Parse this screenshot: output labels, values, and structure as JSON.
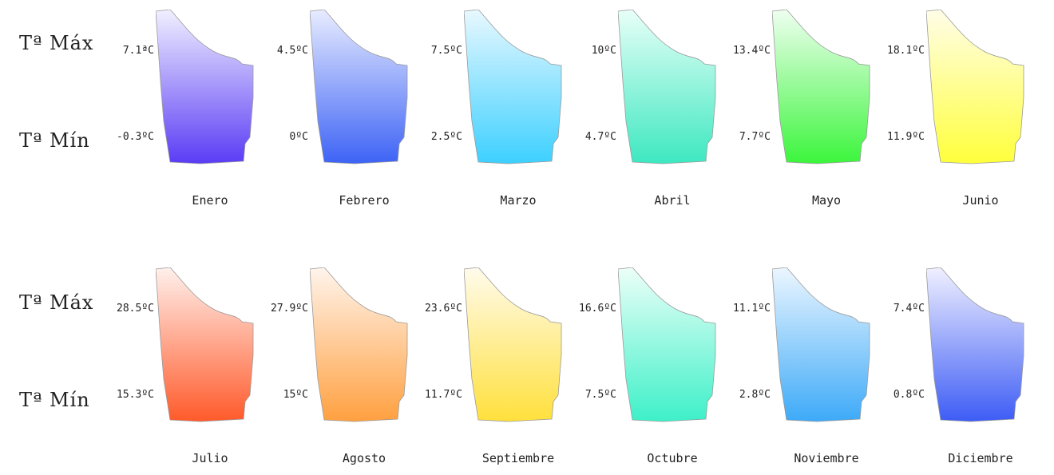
{
  "row_labels": {
    "max": "Tª Máx",
    "min": "Tª Mín"
  },
  "chart_data": {
    "type": "pictogram",
    "title": "",
    "series": [
      {
        "name": "Tª Máx"
      },
      {
        "name": "Tª Mín"
      }
    ],
    "months": [
      {
        "month": "Enero",
        "max": "7.1ªC",
        "min": "-0.3ºC",
        "max_value": 7.1,
        "min_value": -0.3,
        "color_top": "#f1f0ff",
        "color_bottom": "#5a3cf5"
      },
      {
        "month": "Febrero",
        "max": "4.5ºC",
        "min": "0ºC",
        "max_value": 4.5,
        "min_value": 0,
        "color_top": "#e8ecff",
        "color_bottom": "#3d63f5"
      },
      {
        "month": "Marzo",
        "max": "7.5ºC",
        "min": "2.5ºC",
        "max_value": 7.5,
        "min_value": 2.5,
        "color_top": "#e8f8ff",
        "color_bottom": "#3dd0ff"
      },
      {
        "month": "Abril",
        "max": "10ºC",
        "min": "4.7ºC",
        "max_value": 10,
        "min_value": 4.7,
        "color_top": "#e8fff8",
        "color_bottom": "#3de8c0"
      },
      {
        "month": "Mayo",
        "max": "13.4ºC",
        "min": "7.7ºC",
        "max_value": 13.4,
        "min_value": 7.7,
        "color_top": "#effff0",
        "color_bottom": "#3cf53c"
      },
      {
        "month": "Junio",
        "max": "18.1ºC",
        "min": "11.9ºC",
        "max_value": 18.1,
        "min_value": 11.9,
        "color_top": "#fffde8",
        "color_bottom": "#ffff3c"
      },
      {
        "month": "Julio",
        "max": "28.5ºC",
        "min": "15.3ºC",
        "max_value": 28.5,
        "min_value": 15.3,
        "color_top": "#fff0ec",
        "color_bottom": "#ff5a2a"
      },
      {
        "month": "Agosto",
        "max": "27.9ºC",
        "min": "15ºC",
        "max_value": 27.9,
        "min_value": 15,
        "color_top": "#fff4ec",
        "color_bottom": "#ffa040"
      },
      {
        "month": "Septiembre",
        "max": "23.6ºC",
        "min": "11.7ºC",
        "max_value": 23.6,
        "min_value": 11.7,
        "color_top": "#fffbec",
        "color_bottom": "#ffe03c"
      },
      {
        "month": "Octubre",
        "max": "16.6ºC",
        "min": "7.5ºC",
        "max_value": 16.6,
        "min_value": 7.5,
        "color_top": "#ecfff8",
        "color_bottom": "#3df0c8"
      },
      {
        "month": "Noviembre",
        "max": "11.1ºC",
        "min": "2.8ºC",
        "max_value": 11.1,
        "min_value": 2.8,
        "color_top": "#ecf6ff",
        "color_bottom": "#3daaf8"
      },
      {
        "month": "Diciembre",
        "max": "7.4ºC",
        "min": "0.8ºC",
        "max_value": 7.4,
        "min_value": 0.8,
        "color_top": "#f0f0ff",
        "color_bottom": "#3d5cf5"
      }
    ]
  }
}
